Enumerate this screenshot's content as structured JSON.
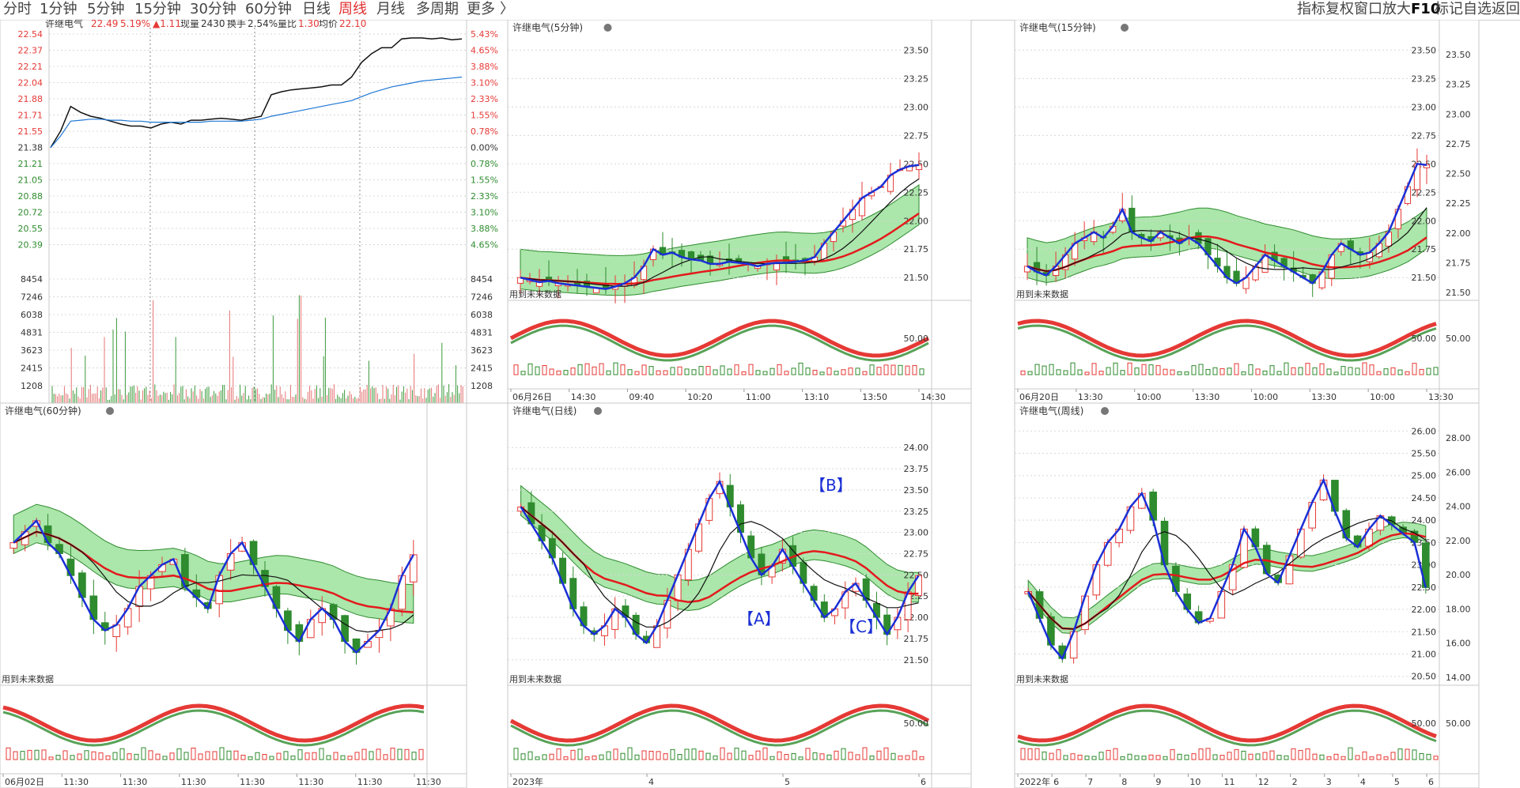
{
  "toolbar": {
    "periods": [
      "分时",
      "1分钟",
      "5分钟",
      "15分钟",
      "30分钟",
      "60分钟",
      "日线",
      "周线",
      "月线",
      "多周期",
      "更多"
    ],
    "active_period": "周线",
    "more_arrow": "〉",
    "right_tools": [
      "指标",
      "复权",
      "窗口",
      "放大",
      "F10",
      "标记",
      "自选",
      "返回"
    ]
  },
  "colors": {
    "up": "#e53935",
    "down": "#2e8b2e",
    "neutral": "#333333",
    "avg": "#1f77d4",
    "blue_zigzag": "#1a2fd6",
    "red_ma": "#e31a1c",
    "band_green": "#66d166",
    "band_cyan": "#8fe0e6",
    "grid": "#d8d8d8"
  },
  "intraday": {
    "header": {
      "last": "22.49",
      "pct": "5.19%",
      "change": "▲1.11",
      "volume_label": "现量",
      "volume": "2430",
      "turnover_label": "换手",
      "turnover": "2.54%",
      "ratio_label": "量比",
      "ratio": "1.30",
      "avg_label": "均价",
      "avg": "22.10"
    },
    "price_levels": [
      "22.54",
      "22.37",
      "22.21",
      "22.04",
      "21.88",
      "21.71",
      "21.55",
      "21.38",
      "21.21",
      "21.05",
      "20.88",
      "20.72",
      "20.55",
      "20.39"
    ],
    "pct_levels": [
      "5.43%",
      "4.65%",
      "3.88%",
      "3.10%",
      "2.33%",
      "1.55%",
      "0.78%",
      "0.00%",
      "0.78%",
      "1.55%",
      "2.33%",
      "3.10%",
      "3.88%",
      "4.65%"
    ],
    "vol_levels": [
      "8454",
      "7246",
      "6038",
      "4831",
      "3623",
      "2415",
      "1208"
    ],
    "price_series": [
      21.38,
      21.55,
      21.8,
      21.74,
      21.7,
      21.68,
      21.65,
      21.62,
      21.6,
      21.6,
      21.58,
      21.62,
      21.64,
      21.62,
      21.66,
      21.66,
      21.67,
      21.68,
      21.67,
      21.66,
      21.68,
      21.7,
      21.92,
      21.95,
      21.97,
      21.98,
      21.99,
      22.0,
      22.02,
      22.02,
      22.1,
      22.25,
      22.34,
      22.4,
      22.4,
      22.49,
      22.5,
      22.5,
      22.49,
      22.5,
      22.48,
      22.49
    ],
    "avg_series": [
      21.38,
      21.5,
      21.65,
      21.66,
      21.67,
      21.67,
      21.66,
      21.66,
      21.65,
      21.65,
      21.64,
      21.64,
      21.64,
      21.64,
      21.64,
      21.64,
      21.65,
      21.65,
      21.65,
      21.65,
      21.66,
      21.67,
      21.7,
      21.72,
      21.74,
      21.76,
      21.78,
      21.8,
      21.82,
      21.84,
      21.86,
      21.9,
      21.94,
      21.97,
      22.0,
      22.02,
      22.04,
      22.06,
      22.07,
      22.08,
      22.09,
      22.1
    ]
  },
  "panels": [
    {
      "id": "p5",
      "title": "许继电气(5分钟)",
      "y_labels": [
        "23.50",
        "23.25",
        "23.00",
        "22.75",
        "22.50",
        "22.25",
        "22.00",
        "21.75",
        "21.50"
      ],
      "y_min": 21.3,
      "y_max": 23.6,
      "ind_label": "50.00",
      "future_label": "用到未来数据",
      "x_labels": [
        "06月26日",
        "14:30",
        "09:40",
        "10:20",
        "11:00",
        "13:10",
        "13:50",
        "14:30"
      ],
      "closes": [
        21.5,
        21.48,
        21.46,
        21.47,
        21.45,
        21.44,
        21.43,
        21.42,
        21.41,
        21.4,
        21.42,
        21.45,
        21.5,
        21.6,
        21.75,
        21.7,
        21.72,
        21.68,
        21.66,
        21.65,
        21.62,
        21.62,
        21.64,
        21.63,
        21.62,
        21.6,
        21.62,
        21.63,
        21.63,
        21.64,
        21.65,
        21.68,
        21.8,
        21.9,
        22.0,
        22.1,
        22.2,
        22.25,
        22.3,
        22.4,
        22.45,
        22.48,
        22.49
      ]
    },
    {
      "id": "p15",
      "title": "许继电气(15分钟)",
      "y_labels": [
        "23.50",
        "23.25",
        "23.00",
        "22.75",
        "22.50",
        "22.25",
        "22.00",
        "21.75",
        "21.50"
      ],
      "y_min": 21.3,
      "y_max": 23.6,
      "ind_label": "50.00",
      "future_label": "用到未来数据",
      "x_labels": [
        "06月20日",
        "13:30",
        "10:00",
        "13:30",
        "10:00",
        "13:30",
        "10:00",
        "13:30"
      ],
      "closes": [
        21.6,
        21.55,
        21.52,
        21.6,
        21.7,
        21.8,
        21.85,
        21.9,
        21.85,
        21.95,
        22.1,
        21.9,
        21.85,
        21.82,
        21.9,
        21.85,
        21.8,
        21.85,
        21.8,
        21.7,
        21.6,
        21.5,
        21.45,
        21.5,
        21.6,
        21.7,
        21.65,
        21.6,
        21.55,
        21.5,
        21.45,
        21.55,
        21.7,
        21.8,
        21.75,
        21.7,
        21.72,
        21.8,
        21.9,
        22.1,
        22.3,
        22.5,
        22.49
      ]
    },
    {
      "id": "p60",
      "title": "许继电气(60分钟)",
      "y_labels": [],
      "y_min": 21.3,
      "y_max": 23.7,
      "ind_label": "",
      "future_label": "用到未来数据",
      "x_labels": [
        "06月02日",
        "11:30",
        "11:30",
        "11:30",
        "11:30",
        "11:30",
        "11:30",
        "11:30"
      ],
      "closes": [
        22.6,
        22.7,
        22.8,
        22.6,
        22.5,
        22.3,
        22.1,
        21.9,
        21.8,
        21.85,
        22.0,
        22.2,
        22.3,
        22.4,
        22.45,
        22.2,
        22.1,
        22.0,
        22.3,
        22.5,
        22.6,
        22.4,
        22.2,
        22.0,
        21.8,
        21.7,
        21.9,
        22.0,
        21.9,
        21.7,
        21.6,
        21.7,
        21.8,
        22.0,
        22.3,
        22.49
      ]
    },
    {
      "id": "pd",
      "title": "许继电气(日线)",
      "y_labels": [
        "24.00",
        "23.75",
        "23.50",
        "23.25",
        "23.00",
        "22.75",
        "22.50",
        "22.25",
        "22.00",
        "21.75",
        "21.50"
      ],
      "y_min": 21.2,
      "y_max": 24.3,
      "ind_label": "50.00",
      "future_label": "用到未来数据",
      "x_labels": [
        "2023年",
        "4",
        "5",
        "6"
      ],
      "closes": [
        23.3,
        23.1,
        22.9,
        22.7,
        22.4,
        22.1,
        21.9,
        21.8,
        21.9,
        22.1,
        22.0,
        21.8,
        21.7,
        21.9,
        22.2,
        22.5,
        22.8,
        23.1,
        23.4,
        23.6,
        23.3,
        23.0,
        22.7,
        22.5,
        22.6,
        22.8,
        22.6,
        22.4,
        22.2,
        22.0,
        22.1,
        22.3,
        22.4,
        22.2,
        22.0,
        21.8,
        22.0,
        22.3,
        22.49
      ]
    },
    {
      "id": "pw",
      "title": "许继电气(周线)",
      "y_labels": [
        "26.00",
        "25.50",
        "25.00",
        "24.50",
        "24.00",
        "23.50",
        "23.00",
        "22.50",
        "22.00",
        "21.50",
        "21.00",
        "20.50"
      ],
      "y_min": 20.3,
      "y_max": 26.2,
      "ind_label": "50.00",
      "future_label": "用到未来数据",
      "x_labels": [
        "2022年",
        "6",
        "7",
        "8",
        "9",
        "10",
        "11",
        "12",
        "2",
        "3",
        "4",
        "5",
        "6"
      ],
      "closes": [
        22.4,
        21.8,
        21.2,
        20.9,
        21.5,
        22.3,
        23.0,
        23.5,
        23.8,
        24.3,
        24.6,
        24.0,
        23.0,
        22.4,
        22.0,
        21.7,
        21.8,
        22.4,
        23.0,
        23.8,
        23.4,
        22.8,
        22.6,
        23.2,
        23.8,
        24.4,
        24.9,
        24.2,
        23.6,
        23.4,
        23.8,
        24.1,
        23.9,
        23.7,
        23.5,
        22.49
      ]
    }
  ],
  "annotations": {
    "A": "【A】",
    "B": "【B】",
    "C": "【C】"
  },
  "right_axes": {
    "p15": [
      "23.50",
      "23.25",
      "23.00",
      "22.75",
      "22.50",
      "22.25",
      "22.00",
      "21.75",
      "21.50"
    ],
    "pw": [
      "28.00",
      "26.00",
      "24.00",
      "22.00",
      "20.00",
      "18.00",
      "16.00",
      "14.00"
    ],
    "p15_ind": "50.00",
    "pw_ind": "50.00"
  }
}
